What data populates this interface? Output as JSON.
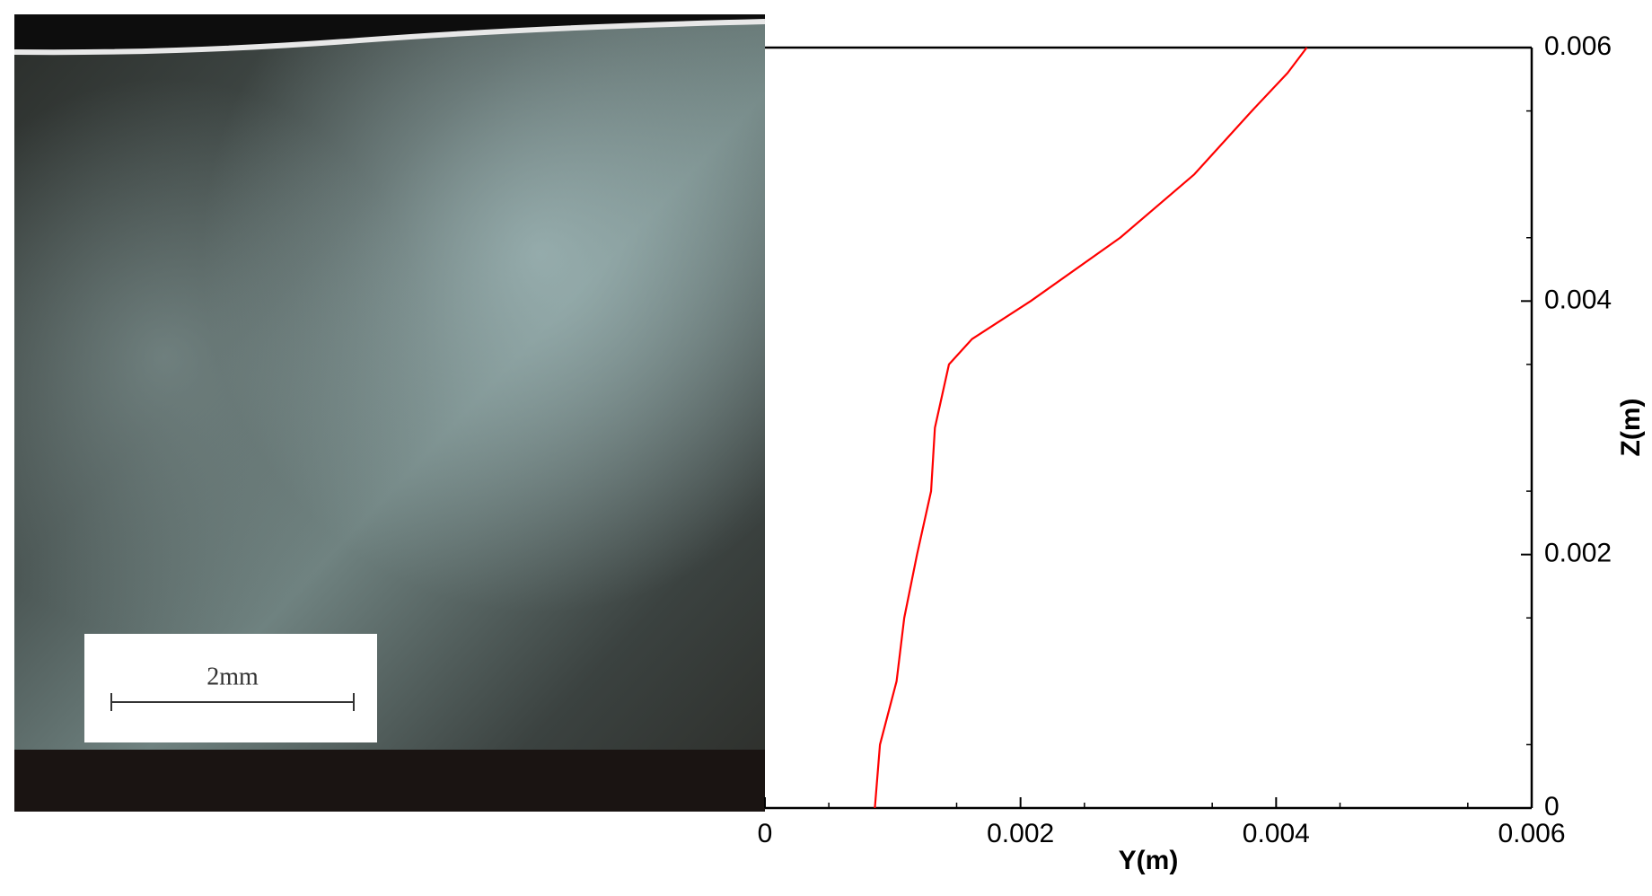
{
  "photo": {
    "scale_label": "2mm"
  },
  "chart_data": {
    "type": "line",
    "x_label": "Y(m)",
    "y_label": "Z(m)",
    "x": [
      0.00086,
      0.0009,
      0.00103,
      0.00109,
      0.00119,
      0.0013,
      0.00133,
      0.00144,
      0.00162,
      0.00208,
      0.00278,
      0.00336,
      0.00381,
      0.00409,
      0.00424
    ],
    "values": [
      0,
      0.0005,
      0.001,
      0.0015,
      0.002,
      0.0025,
      0.003,
      0.0035,
      0.0037,
      0.004,
      0.0045,
      0.005,
      0.0055,
      0.0058,
      0.006
    ],
    "color": "#ff0000",
    "xlim": [
      0,
      0.006
    ],
    "xticks": [
      0,
      0.002,
      0.004,
      0.006
    ],
    "ylim": [
      0,
      0.006
    ],
    "yticks": [
      0,
      0.002,
      0.004,
      0.006
    ],
    "y_axis_side": "right"
  }
}
